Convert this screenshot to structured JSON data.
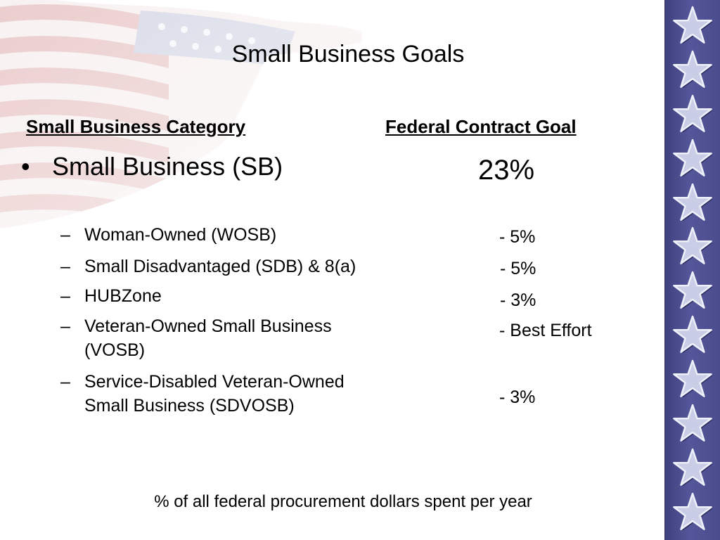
{
  "slide": {
    "title": "Small Business Goals",
    "column_headers": {
      "category": "Small Business Category",
      "goal": "Federal Contract Goal"
    },
    "main_category": {
      "label": "Small Business (SB)",
      "goal": "23%"
    },
    "subcategories": [
      {
        "line1": "Woman-Owned (WOSB)",
        "line2": "",
        "goal": "- 5%"
      },
      {
        "line1": "Small Disadvantaged (SDB) & 8(a)",
        "line2": "",
        "goal": "- 5%"
      },
      {
        "line1": "HUBZone",
        "line2": "",
        "goal": "- 3%"
      },
      {
        "line1": "Veteran-Owned Small Business",
        "line2": "(VOSB)",
        "goal": "- Best Effort"
      },
      {
        "line1": "Service-Disabled Veteran-Owned",
        "line2": "Small Business (SDVOSB)",
        "goal": "- 3%"
      }
    ],
    "bullet": "•",
    "dash": "–",
    "footer_note": "% of all federal procurement dollars spent per year"
  },
  "decor": {
    "star_strip_color": "#4a4c8c",
    "star_fill": "#c9cde6",
    "star_outline": "#eef0fa",
    "flag_stripe_color": "#d9a1a1",
    "flag_canton_color": "#aeb4cc",
    "icons": [
      "flag-watermark",
      "star-icon"
    ]
  }
}
